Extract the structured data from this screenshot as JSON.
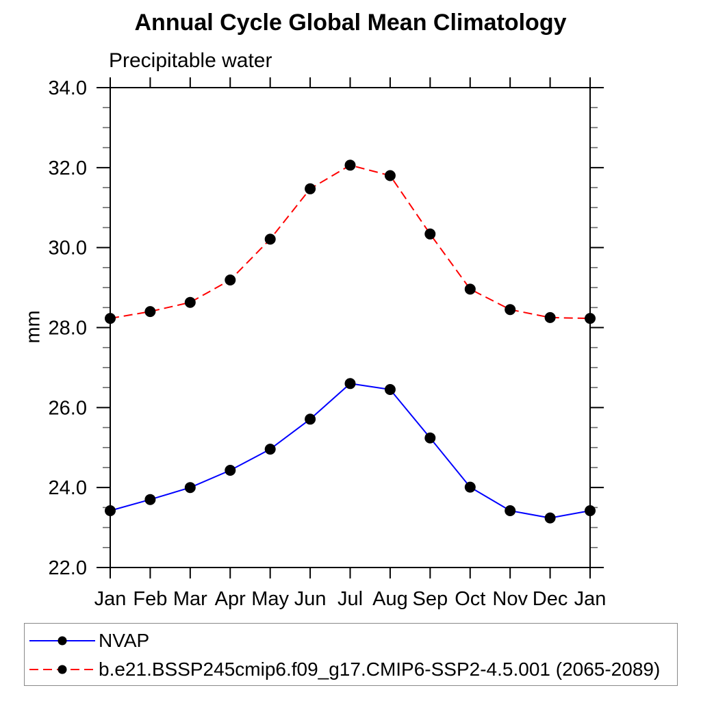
{
  "chart_data": {
    "type": "line",
    "title": "Annual Cycle Global Mean Climatology",
    "subtitle": "Precipitable water",
    "ylabel": "mm",
    "xlabel": "",
    "categories": [
      "Jan",
      "Feb",
      "Mar",
      "Apr",
      "May",
      "Jun",
      "Jul",
      "Aug",
      "Sep",
      "Oct",
      "Nov",
      "Dec",
      "Jan"
    ],
    "ylim": [
      22.0,
      34.0
    ],
    "ytick_major_step": 2.0,
    "ytick_minor_step": 0.5,
    "ytick_labels": [
      "22.0",
      "24.0",
      "26.0",
      "28.0",
      "30.0",
      "32.0",
      "34.0"
    ],
    "grid": false,
    "legend_position": "bottom-left-box",
    "marker": "filled-circle",
    "marker_color": "#000000",
    "axis_color": "#000000",
    "series": [
      {
        "name": "NVAP",
        "color": "#0000ff",
        "line_style": "solid",
        "values": [
          23.42,
          23.7,
          24.0,
          24.43,
          24.96,
          25.71,
          26.6,
          26.45,
          25.24,
          24.01,
          23.42,
          23.24,
          23.42
        ]
      },
      {
        "name": "b.e21.BSSP245cmip6.f09_g17.CMIP6-SSP2-4.5.001 (2065-2089)",
        "color": "#ff0000",
        "line_style": "dashed",
        "values": [
          28.23,
          28.4,
          28.63,
          29.19,
          30.21,
          31.47,
          32.06,
          31.8,
          30.34,
          28.96,
          28.45,
          28.25,
          28.23
        ]
      }
    ]
  }
}
